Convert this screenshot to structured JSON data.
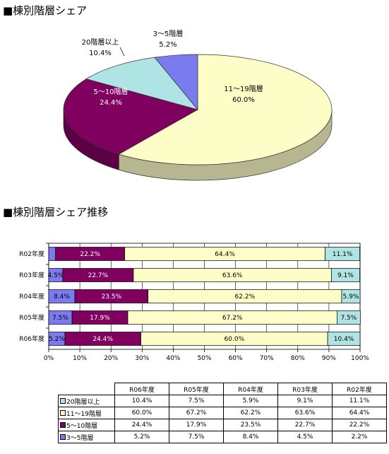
{
  "titles": {
    "pie": "■棟別階層シェア",
    "bar": "■棟別階層シェア推移"
  },
  "colors": {
    "c20": "#aee4e4",
    "c11": "#fdfdc8",
    "c5": "#800060",
    "c3": "#7b7bf0"
  },
  "chart_data": [
    {
      "type": "pie",
      "slices": [
        {
          "label": "11～19階層",
          "value": 60.0,
          "value_label": "60.0%"
        },
        {
          "label": "5～10階層",
          "value": 24.4,
          "value_label": "24.4%"
        },
        {
          "label": "20階層以上",
          "value": 10.4,
          "value_label": "10.4%"
        },
        {
          "label": "3～5階層",
          "value": 5.2,
          "value_label": "5.2%"
        }
      ]
    },
    {
      "type": "bar",
      "orientation": "horizontal-stacked-100",
      "categories": [
        "R02年度",
        "R03年度",
        "R04年度",
        "R05年度",
        "R06年度"
      ],
      "series": [
        {
          "name": "3～5階層",
          "values": [
            2.2,
            4.5,
            8.4,
            7.5,
            5.2
          ],
          "labels": [
            "",
            "4.5%",
            "8.4%",
            "7.5%",
            "5.2%"
          ]
        },
        {
          "name": "5～10階層",
          "values": [
            22.2,
            22.7,
            23.5,
            17.9,
            24.4
          ],
          "labels": [
            "22.2%",
            "22.7%",
            "23.5%",
            "17.9%",
            "24.4%"
          ]
        },
        {
          "name": "11～19階層",
          "values": [
            64.4,
            63.6,
            62.2,
            67.2,
            60.0
          ],
          "labels": [
            "64.4%",
            "63.6%",
            "62.2%",
            "67.2%",
            "60.0%"
          ]
        },
        {
          "name": "20階層以上",
          "values": [
            11.1,
            9.1,
            5.9,
            7.5,
            10.4
          ],
          "labels": [
            "11.1%",
            "9.1%",
            "5.9%",
            "7.5%",
            "10.4%"
          ]
        }
      ],
      "xlim": [
        0,
        100
      ],
      "xticks": [
        "0%",
        "10%",
        "20%",
        "30%",
        "40%",
        "50%",
        "60%",
        "70%",
        "80%",
        "90%",
        "100%"
      ],
      "grid": true
    }
  ],
  "table": {
    "columns": [
      "R06年度",
      "R05年度",
      "R04年度",
      "R03年度",
      "R02年度"
    ],
    "rows": [
      {
        "label": "20階層以上",
        "swatch": "c20",
        "cells": [
          "10.4%",
          "7.5%",
          "5.9%",
          "9.1%",
          "11.1%"
        ]
      },
      {
        "label": "11～19階層",
        "swatch": "c11",
        "cells": [
          "60.0%",
          "67.2%",
          "62.2%",
          "63.6%",
          "64.4%"
        ]
      },
      {
        "label": "5～10階層",
        "swatch": "c5",
        "cells": [
          "24.4%",
          "17.9%",
          "23.5%",
          "22.7%",
          "22.2%"
        ]
      },
      {
        "label": "3～5階層",
        "swatch": "c3",
        "cells": [
          "5.2%",
          "7.5%",
          "8.4%",
          "4.5%",
          "2.2%"
        ]
      }
    ]
  }
}
